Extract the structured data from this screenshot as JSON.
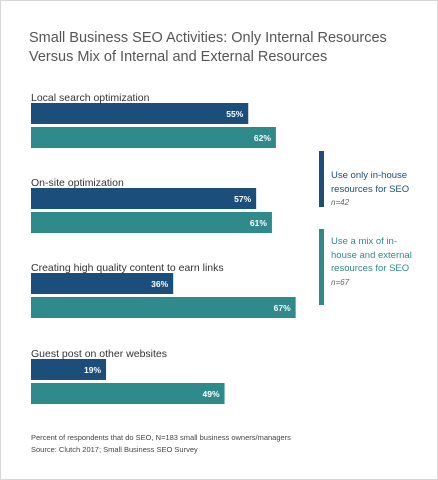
{
  "chart_data": {
    "type": "bar",
    "orientation": "horizontal",
    "title": "Small Business SEO Activities: Only Internal Resources Versus Mix of Internal and External Resources",
    "categories": [
      "Local search optimization",
      "On-site optimization",
      "Creating high quality content to earn links",
      "Guest post on other websites"
    ],
    "series": [
      {
        "name": "Use only in-house resources for SEO",
        "sample_size": "n=42",
        "color": "#1c4e7b",
        "values": [
          55,
          57,
          36,
          19
        ],
        "value_labels": [
          "55%",
          "57%",
          "36%",
          "19%"
        ]
      },
      {
        "name": "Use a mix of in-house and external resources for SEO",
        "sample_size": "n=67",
        "color": "#2e8a8b",
        "values": [
          62,
          61,
          67,
          49
        ],
        "value_labels": [
          "62%",
          "61%",
          "67%",
          "49%"
        ]
      }
    ],
    "notes": [
      "Percent of respondents that do SEO, N=183 small business owners/managers",
      "Source: Clutch 2017; Small Business SEO Survey"
    ]
  }
}
